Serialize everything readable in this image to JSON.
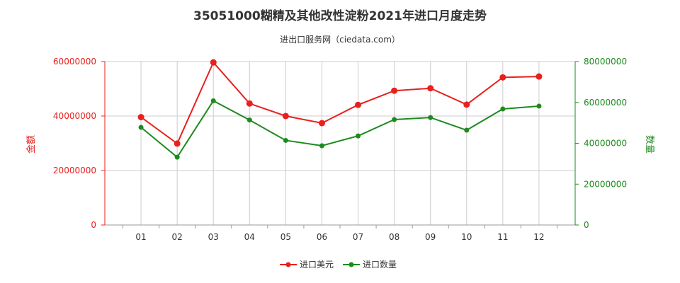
{
  "chart_data": {
    "type": "line",
    "title": "35051000糊精及其他改性淀粉2021年进口月度走势",
    "subtitle": "进出口服务网（ciedata.com）",
    "categories": [
      "01",
      "02",
      "03",
      "04",
      "05",
      "06",
      "07",
      "08",
      "09",
      "10",
      "11",
      "12"
    ],
    "y_left": {
      "label": "金额",
      "ylim": [
        0,
        60000000
      ],
      "ticks": [
        "0",
        "20000000",
        "40000000",
        "60000000"
      ],
      "color": "#e8201e"
    },
    "y_right": {
      "label": "数量",
      "ylim": [
        0,
        80000000
      ],
      "ticks": [
        "0",
        "20000000",
        "40000000",
        "60000000",
        "80000000"
      ],
      "color": "#1e8a1e"
    },
    "series": [
      {
        "name": "进口美元",
        "axis": "left",
        "color": "#e8201e",
        "values": [
          39600000,
          29900000,
          59700000,
          44600000,
          40000000,
          37400000,
          44100000,
          49300000,
          50200000,
          44200000,
          54200000,
          54500000
        ]
      },
      {
        "name": "进口数量",
        "axis": "right",
        "color": "#1e8a1e",
        "values": [
          47800000,
          33200000,
          60800000,
          51400000,
          41400000,
          38800000,
          43600000,
          51600000,
          52600000,
          46400000,
          56800000,
          58200000
        ]
      }
    ],
    "grid": true,
    "legend_position": "bottom-center"
  }
}
